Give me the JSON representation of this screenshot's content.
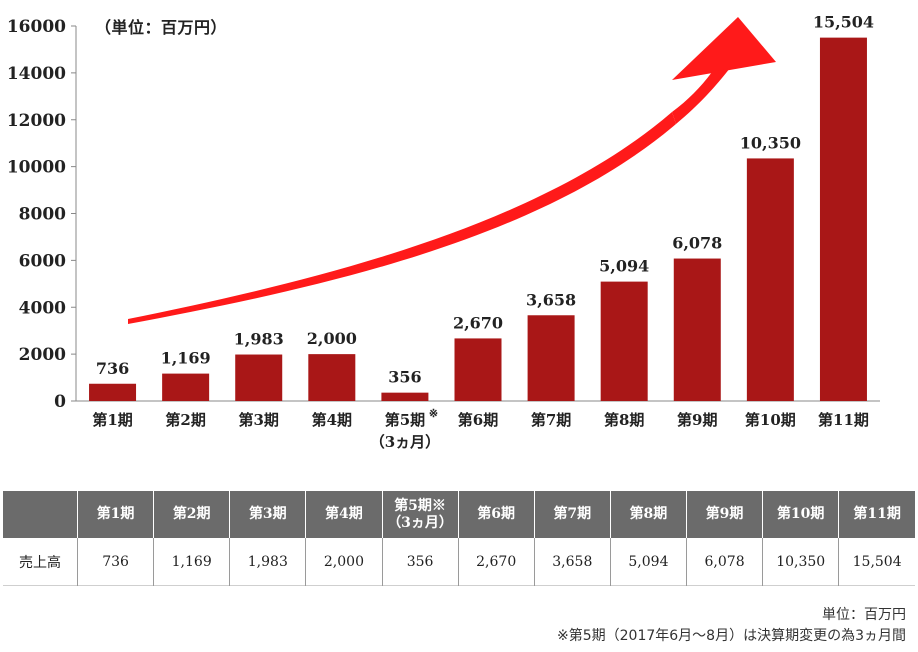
{
  "unit_label": "（単位：百万円）",
  "chart_data": {
    "type": "bar",
    "categories": [
      "第1期",
      "第2期",
      "第3期",
      "第4期",
      "第5期",
      "第6期",
      "第7期",
      "第8期",
      "第9期",
      "第10期",
      "第11期"
    ],
    "category_notes": [
      "",
      "",
      "",
      "",
      "※",
      "",
      "",
      "",
      "",
      "",
      ""
    ],
    "category_sublabels": [
      "",
      "",
      "",
      "",
      "（3ヵ月）",
      "",
      "",
      "",
      "",
      "",
      ""
    ],
    "values": [
      736,
      1169,
      1983,
      2000,
      356,
      2670,
      3658,
      5094,
      6078,
      10350,
      15504
    ],
    "value_labels": [
      "736",
      "1,169",
      "1,983",
      "2,000",
      "356",
      "2,670",
      "3,658",
      "5,094",
      "6,078",
      "10,350",
      "15,504"
    ],
    "y_ticks": [
      "0",
      "2000",
      "4000",
      "6000",
      "8000",
      "10000",
      "12000",
      "14000",
      "16000"
    ],
    "ylim": [
      0,
      16000
    ],
    "bar_color": "#a91717",
    "arrow_color": "#ff1a1a",
    "grid": false
  },
  "table": {
    "header_labels": [
      "第1期",
      "第2期",
      "第3期",
      "第4期",
      "第5期※",
      "第6期",
      "第7期",
      "第8期",
      "第9期",
      "第10期",
      "第11期"
    ],
    "header_sublabels": [
      "",
      "",
      "",
      "",
      "（3ヵ月）",
      "",
      "",
      "",
      "",
      "",
      ""
    ],
    "row_label": "売上高",
    "row_values": [
      "736",
      "1,169",
      "1,983",
      "2,000",
      "356",
      "2,670",
      "3,658",
      "5,094",
      "6,078",
      "10,350",
      "15,504"
    ]
  },
  "footnote_unit": "単位：百万円",
  "footnote_note": "※第5期（2017年6月～8月）は決算期変更の為3ヵ月間"
}
